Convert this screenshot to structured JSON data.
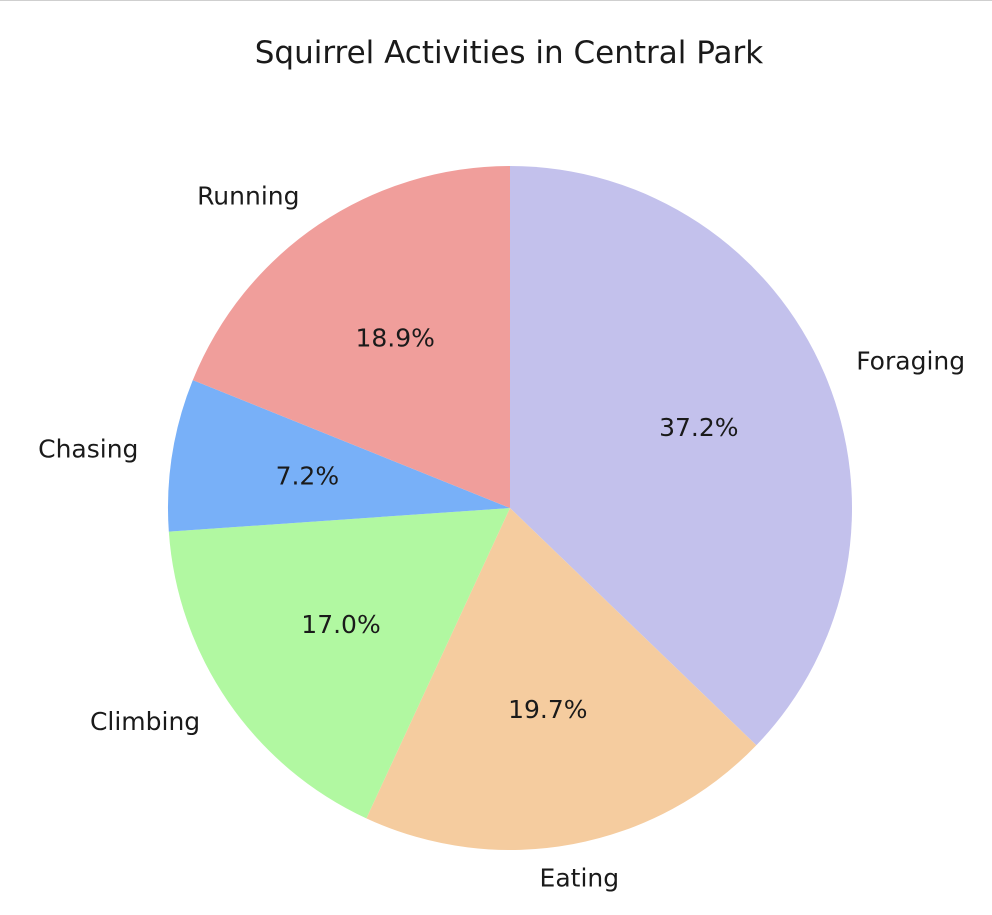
{
  "chart_data": {
    "type": "pie",
    "title": "Squirrel Activities in Central Park",
    "categories": [
      "Foraging",
      "Eating",
      "Climbing",
      "Chasing",
      "Running"
    ],
    "values": [
      37.2,
      19.7,
      17.0,
      7.2,
      18.9
    ],
    "value_labels": [
      "37.2%",
      "19.7%",
      "17.0%",
      "7.2%",
      "18.9%"
    ],
    "colors": [
      "#c3c1ec",
      "#f5cc9f",
      "#b1f8a1",
      "#78b0f8",
      "#f09e9b"
    ],
    "start_angle": "top",
    "direction": "clockwise",
    "legend": "none"
  }
}
